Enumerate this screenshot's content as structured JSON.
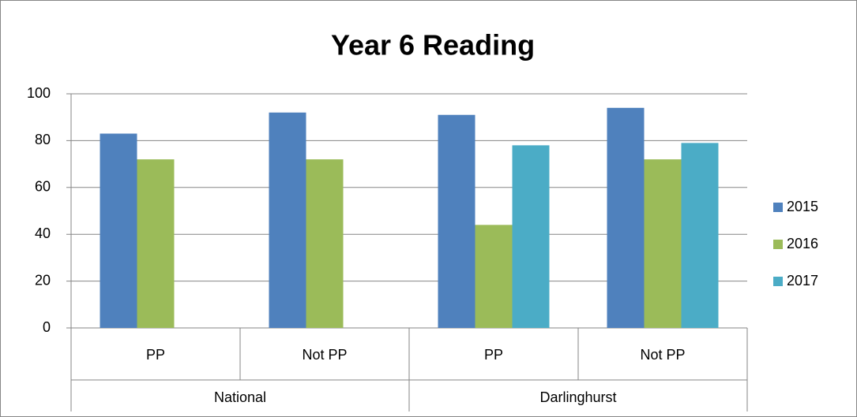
{
  "chart_data": {
    "type": "bar",
    "title": "Year 6 Reading",
    "categories": [
      "PP",
      "Not PP",
      "PP",
      "Not PP"
    ],
    "groups": [
      "National",
      "Darlinghurst"
    ],
    "series": [
      {
        "name": "2015",
        "color": "#4f81bd",
        "values": [
          83,
          92,
          91,
          94
        ]
      },
      {
        "name": "2016",
        "color": "#9bbb59",
        "values": [
          72,
          72,
          44,
          72
        ]
      },
      {
        "name": "2017",
        "color": "#4bacc6",
        "values": [
          null,
          null,
          78,
          79
        ]
      }
    ],
    "ylim": [
      0,
      100
    ],
    "yticks": [
      0,
      20,
      40,
      60,
      80,
      100
    ],
    "grid": true,
    "legend": "right"
  }
}
